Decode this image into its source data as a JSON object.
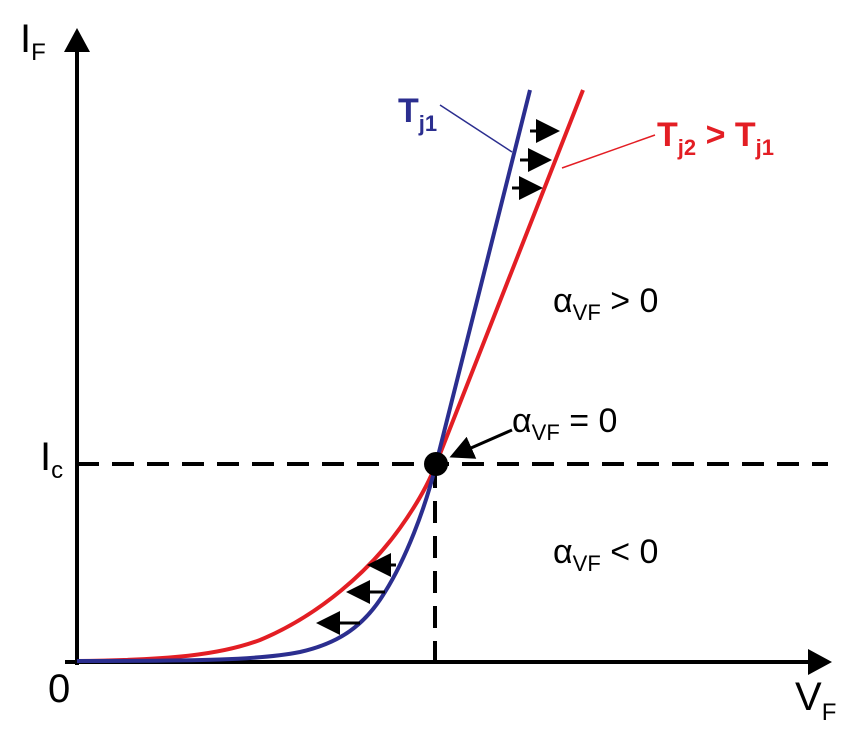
{
  "axes": {
    "y_main": "I",
    "y_sub": "F",
    "x_main": "V",
    "x_sub": "F",
    "origin": "0",
    "ic_main": "I",
    "ic_sub": "c"
  },
  "curves": {
    "tj1": {
      "main": "T",
      "sub": "j1",
      "color": "#2b2e8f"
    },
    "tj2": {
      "main1": "T",
      "sub1": "j2",
      "op": " > ",
      "main2": "T",
      "sub2": "j1",
      "color": "#e31e24"
    }
  },
  "regions": {
    "positive": {
      "alpha": "α",
      "sub": "VF",
      "rel": " > 0"
    },
    "zero": {
      "alpha": "α",
      "sub": "VF",
      "rel": " = 0"
    },
    "negative": {
      "alpha": "α",
      "sub": "VF",
      "rel": " < 0"
    }
  },
  "colors": {
    "axis": "#000000",
    "tj1": "#2b2e8f",
    "tj2": "#e31e24"
  }
}
